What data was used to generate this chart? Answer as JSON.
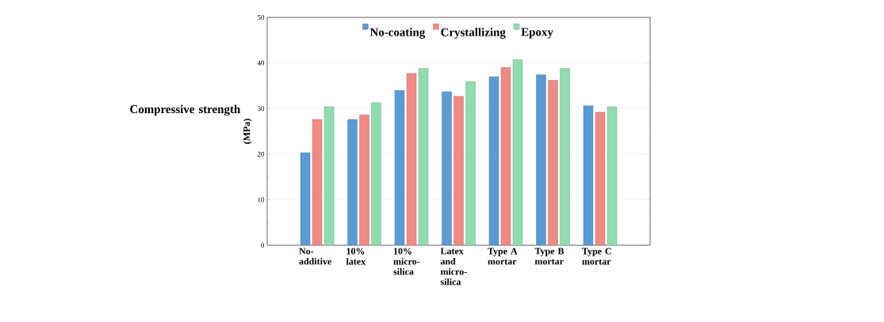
{
  "chart_data": {
    "type": "bar",
    "ylabel": "(MPa)",
    "annotations": [
      "Compressive strength"
    ],
    "categories": [
      "No-additive",
      "10% latex",
      "10% micro-silica",
      "Latex and micro-silica",
      "Type A mortar",
      "Type B mortar",
      "Type C mortar"
    ],
    "series": [
      {
        "name": "No-coating",
        "color": "#5b9bd5",
        "values": [
          20.3,
          27.6,
          34.0,
          33.7,
          37.0,
          37.4,
          30.6
        ]
      },
      {
        "name": "Crystallizing",
        "color": "#f08a84",
        "values": [
          27.6,
          28.6,
          37.7,
          32.7,
          39.0,
          36.2,
          29.2
        ]
      },
      {
        "name": "Epoxy",
        "color": "#8fdcb0",
        "values": [
          30.4,
          31.3,
          38.8,
          35.9,
          40.7,
          38.8,
          30.4
        ]
      }
    ],
    "ylim": [
      0,
      50
    ],
    "yticks": [
      0,
      10,
      20,
      30,
      40,
      50
    ],
    "grid": "y",
    "legend": "top"
  }
}
